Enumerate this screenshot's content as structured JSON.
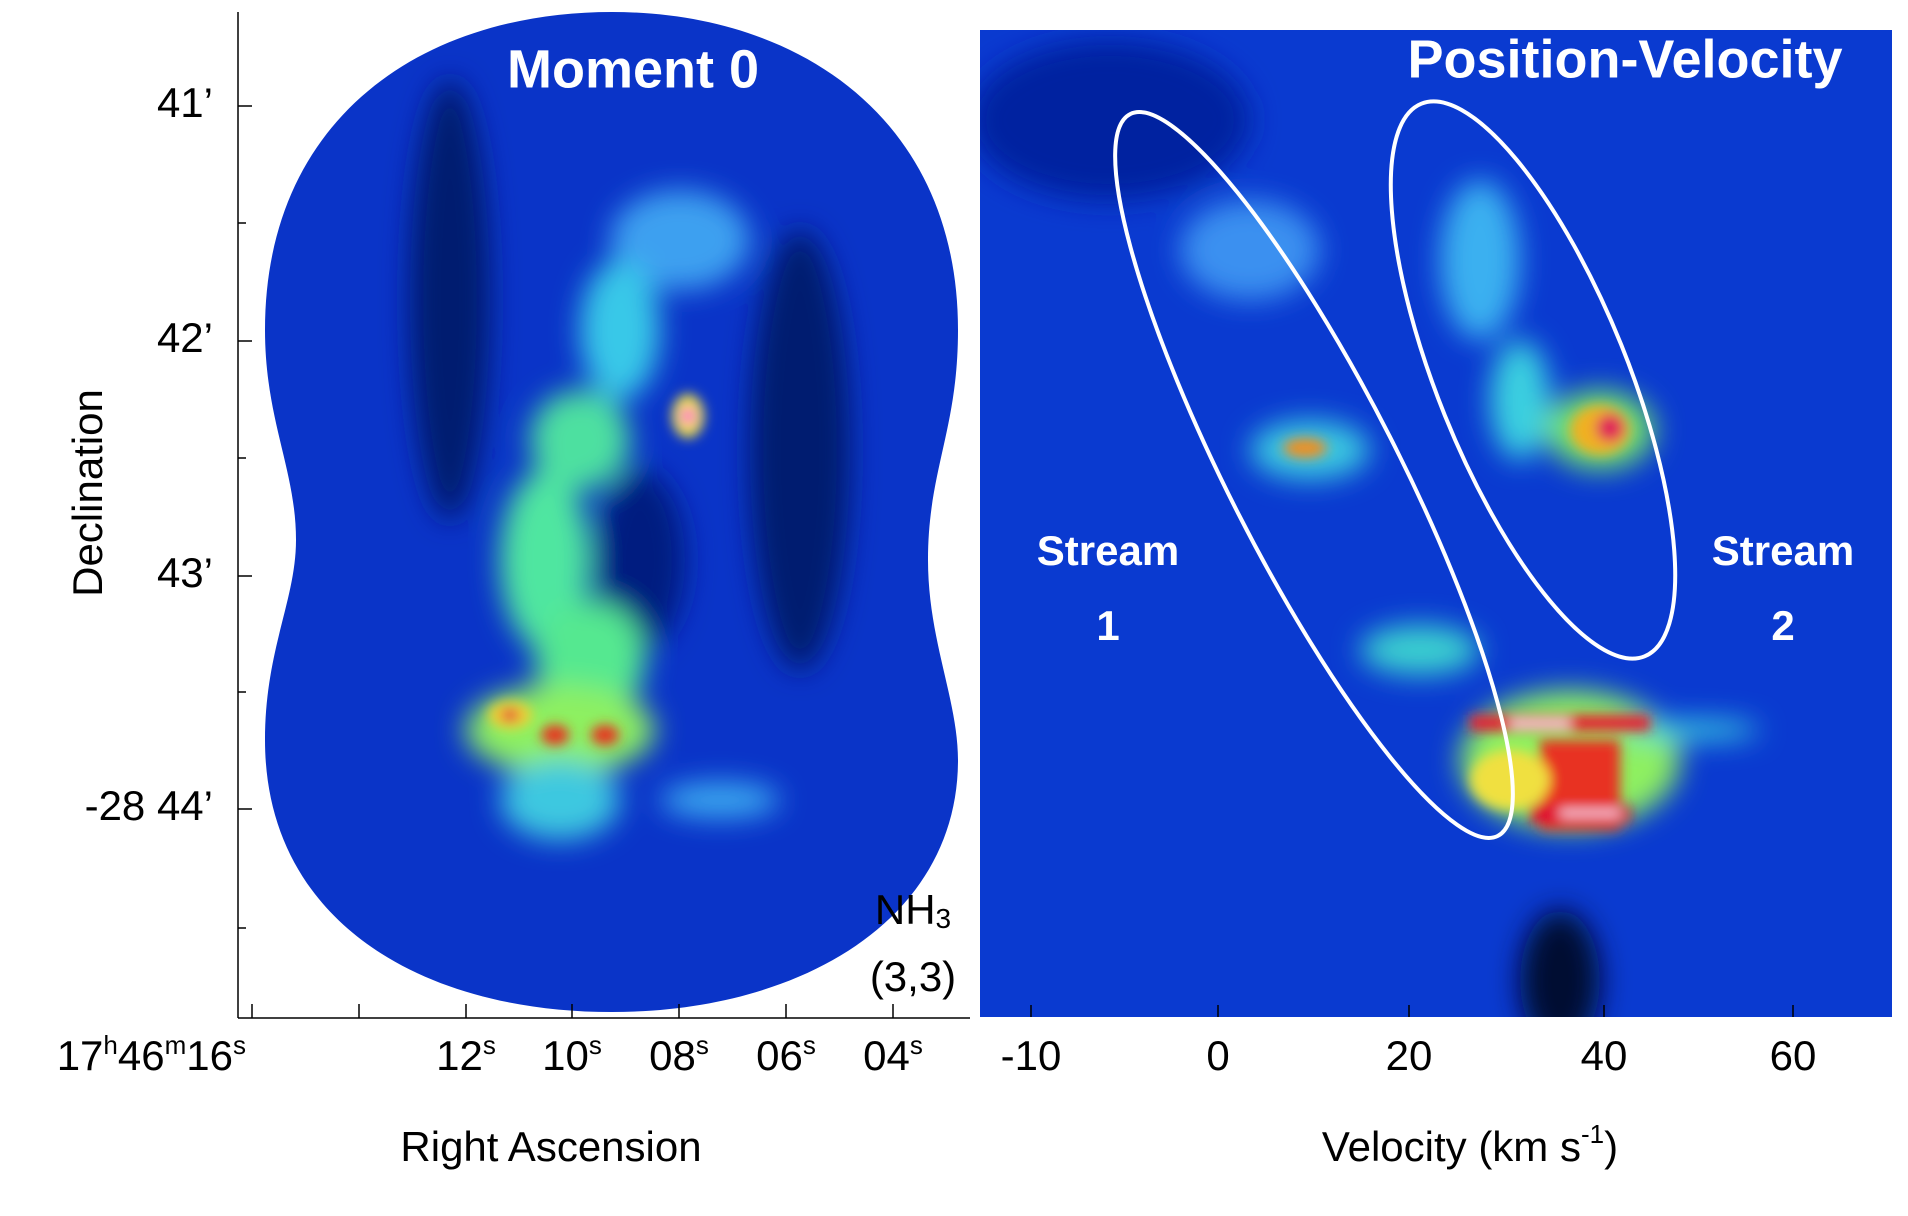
{
  "left_panel": {
    "title": "Moment 0",
    "x_label": "Right Ascension",
    "y_label": "Declination",
    "y_ticks": [
      "41’",
      "42’",
      "43’",
      "-28 44’"
    ],
    "x_ticks": [
      [
        "17",
        "h",
        "46",
        "m",
        "16",
        "s"
      ],
      [
        "12",
        "s"
      ],
      [
        "10",
        "s"
      ],
      [
        "08",
        "s"
      ],
      [
        "06",
        "s"
      ],
      [
        "04",
        "s"
      ]
    ],
    "line_label": {
      "molecule": [
        "NH",
        "3"
      ],
      "transition": "(3,3)"
    }
  },
  "right_panel": {
    "title": "Position-Velocity",
    "x_label": [
      "Velocity (km s",
      "-1",
      ")"
    ],
    "x_ticks": [
      "-10",
      "0",
      "20",
      "40",
      "60"
    ],
    "annotations": [
      {
        "name": "Stream",
        "number": "1"
      },
      {
        "name": "Stream",
        "number": "2"
      }
    ]
  }
}
